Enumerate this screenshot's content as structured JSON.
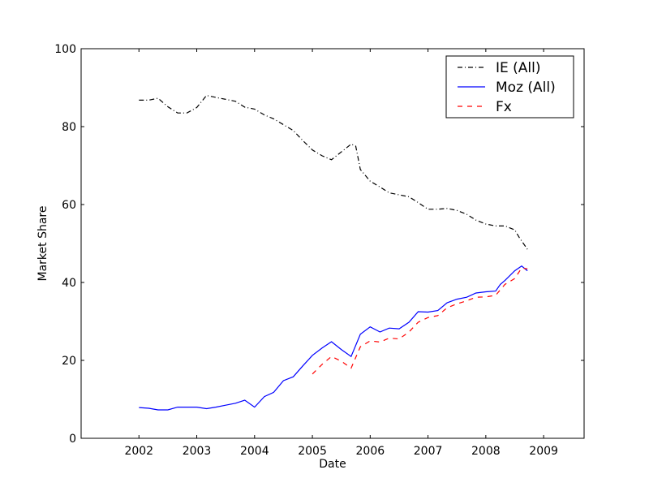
{
  "chart_data": {
    "type": "line",
    "title": "",
    "xlabel": "Date",
    "ylabel": "Market Share",
    "xlim": [
      2001.0,
      2009.7
    ],
    "ylim": [
      0,
      100
    ],
    "x_ticks": [
      2002,
      2003,
      2004,
      2005,
      2006,
      2007,
      2008,
      2009
    ],
    "x_tick_labels": [
      "2002",
      "2003",
      "2004",
      "2005",
      "2006",
      "2007",
      "2008",
      "2009"
    ],
    "y_ticks": [
      0,
      20,
      40,
      60,
      80,
      100
    ],
    "y_tick_labels": [
      "0",
      "20",
      "40",
      "60",
      "80",
      "100"
    ],
    "grid": false,
    "legend_position": "top-right",
    "series": [
      {
        "name": "IE (All)",
        "color": "#000000",
        "linestyle": "dashdot",
        "x": [
          2002.0,
          2002.17,
          2002.33,
          2002.5,
          2002.67,
          2002.83,
          2003.0,
          2003.17,
          2003.33,
          2003.5,
          2003.67,
          2003.83,
          2004.0,
          2004.17,
          2004.33,
          2004.5,
          2004.67,
          2004.83,
          2005.0,
          2005.17,
          2005.33,
          2005.5,
          2005.67,
          2005.75,
          2005.83,
          2006.0,
          2006.17,
          2006.33,
          2006.5,
          2006.67,
          2006.83,
          2007.0,
          2007.17,
          2007.33,
          2007.5,
          2007.67,
          2007.83,
          2008.0,
          2008.17,
          2008.33,
          2008.5,
          2008.58,
          2008.72
        ],
        "y": [
          86.8,
          86.8,
          87.3,
          85.1,
          83.5,
          83.5,
          84.9,
          88.0,
          87.5,
          87.0,
          86.5,
          85.0,
          84.5,
          83.0,
          82.0,
          80.5,
          79.0,
          76.5,
          74.0,
          72.5,
          71.5,
          73.5,
          75.5,
          75.0,
          69.0,
          66.0,
          64.5,
          63.0,
          62.5,
          62.0,
          60.5,
          58.8,
          58.8,
          59.0,
          58.5,
          57.5,
          56.0,
          55.0,
          54.5,
          54.5,
          53.5,
          51.5,
          48.5
        ]
      },
      {
        "name": "Moz (All)",
        "color": "#0000ff",
        "linestyle": "solid",
        "x": [
          2002.0,
          2002.17,
          2002.33,
          2002.5,
          2002.67,
          2002.83,
          2003.0,
          2003.17,
          2003.33,
          2003.5,
          2003.67,
          2003.83,
          2004.0,
          2004.17,
          2004.33,
          2004.5,
          2004.67,
          2004.83,
          2005.0,
          2005.17,
          2005.33,
          2005.5,
          2005.67,
          2005.83,
          2006.0,
          2006.17,
          2006.33,
          2006.5,
          2006.67,
          2006.83,
          2007.0,
          2007.17,
          2007.33,
          2007.5,
          2007.67,
          2007.83,
          2008.0,
          2008.17,
          2008.25,
          2008.33,
          2008.5,
          2008.62,
          2008.72
        ],
        "y": [
          7.9,
          7.7,
          7.3,
          7.3,
          8.0,
          8.0,
          8.0,
          7.6,
          8.0,
          8.5,
          9.0,
          9.8,
          8.0,
          10.7,
          11.8,
          14.8,
          15.8,
          18.5,
          21.3,
          23.2,
          24.8,
          22.8,
          21.0,
          26.7,
          28.6,
          27.3,
          28.3,
          28.1,
          29.8,
          32.5,
          32.4,
          32.8,
          34.8,
          35.7,
          36.2,
          37.3,
          37.6,
          37.8,
          39.5,
          40.5,
          43.0,
          44.2,
          43.0
        ]
      },
      {
        "name": "Fx",
        "color": "#ff0000",
        "linestyle": "dashed",
        "x": [
          2005.0,
          2005.17,
          2005.33,
          2005.5,
          2005.67,
          2005.83,
          2006.0,
          2006.17,
          2006.33,
          2006.5,
          2006.67,
          2006.83,
          2007.0,
          2007.17,
          2007.33,
          2007.5,
          2007.67,
          2007.83,
          2008.0,
          2008.17,
          2008.33,
          2008.5,
          2008.62,
          2008.72
        ],
        "y": [
          16.5,
          19.0,
          21.0,
          19.8,
          18.0,
          23.5,
          25.0,
          24.7,
          25.7,
          25.5,
          27.3,
          29.8,
          31.0,
          31.5,
          33.5,
          34.5,
          35.3,
          36.2,
          36.3,
          36.7,
          39.5,
          41.0,
          43.7,
          43.5
        ]
      }
    ]
  }
}
